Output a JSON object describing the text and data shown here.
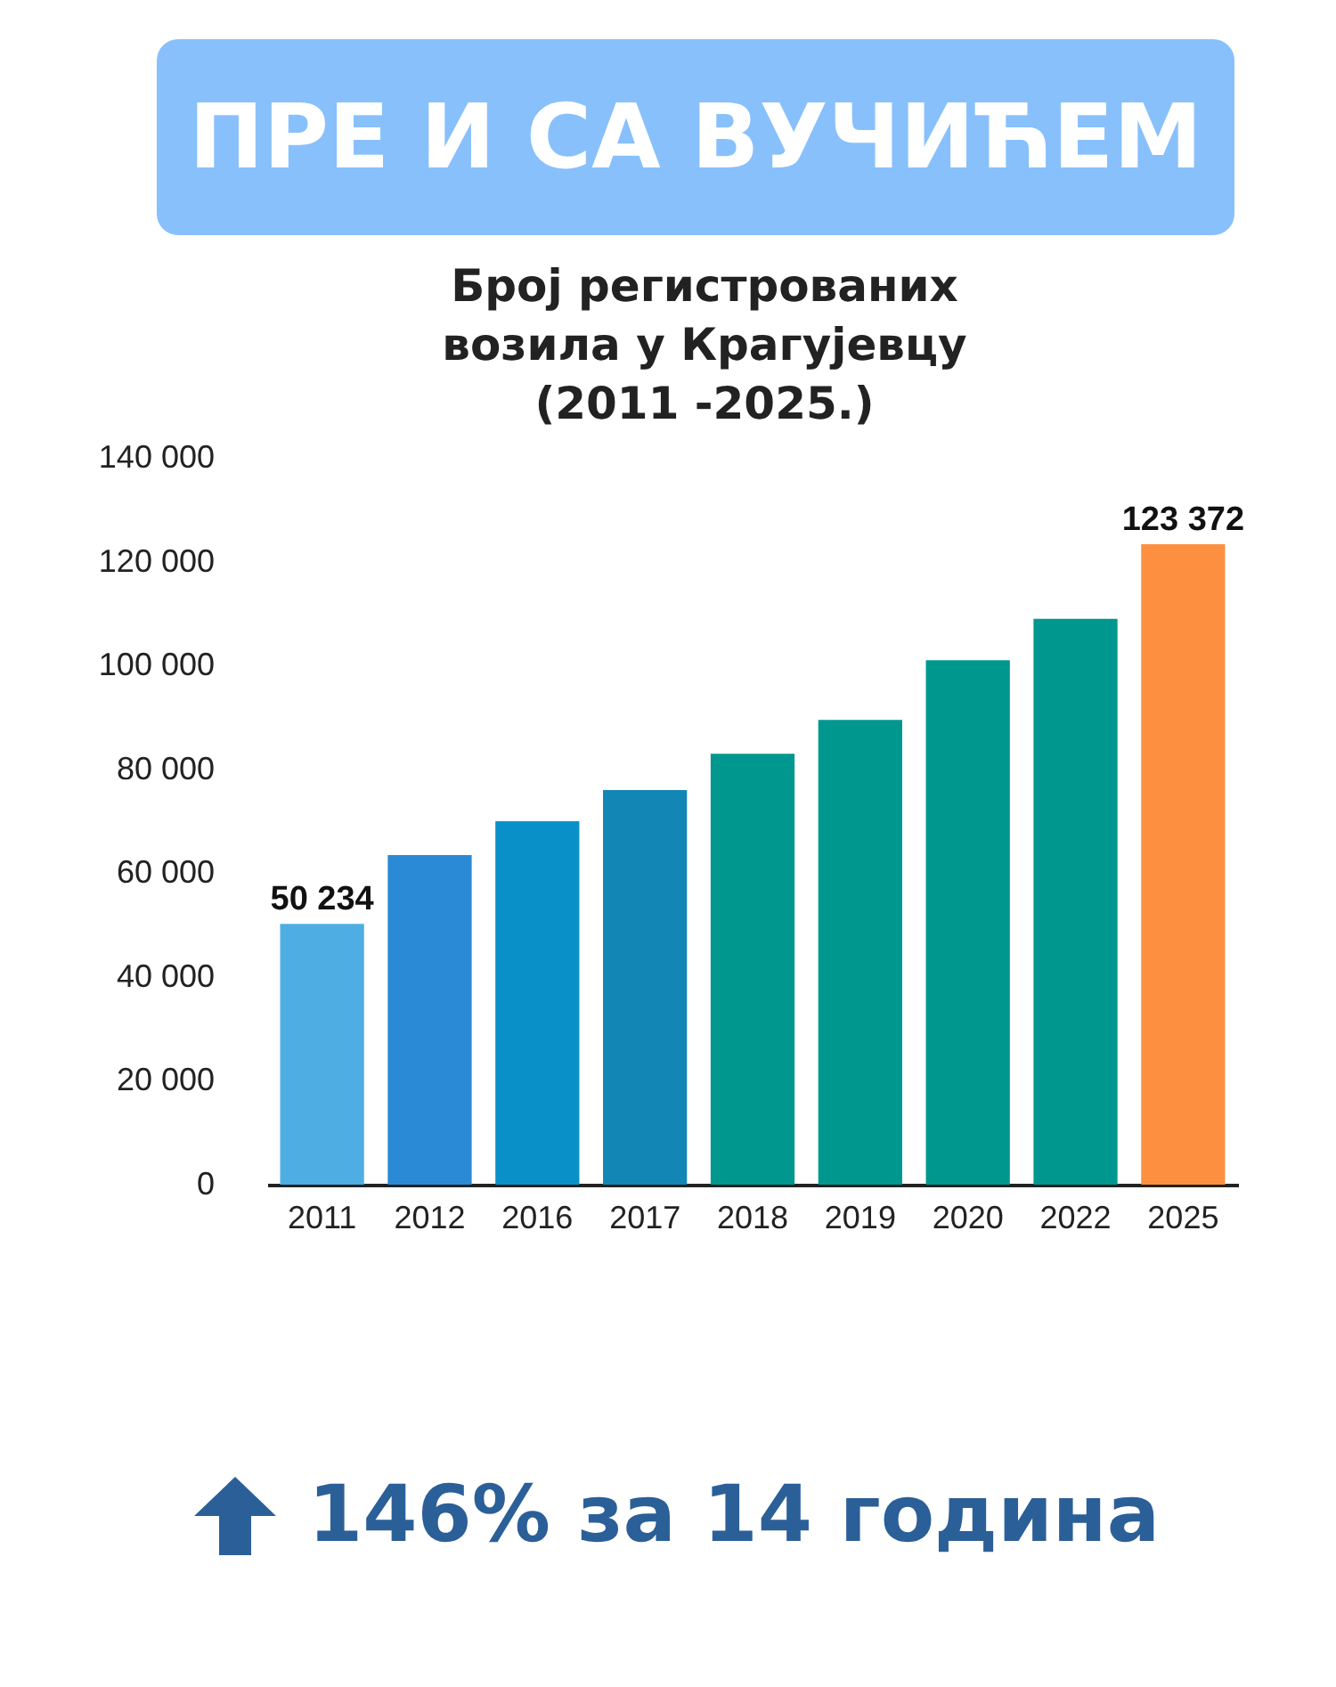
{
  "chart_data": {
    "type": "bar",
    "title": "ПРЕ И СА ВУЧИЋЕМ",
    "subtitle": "Број регистрованих\nвозила у Крагујевцу\n(2011 -2025.)",
    "categories": [
      "2011",
      "2012",
      "2016",
      "2017",
      "2018",
      "2019",
      "2020",
      "2022",
      "2025"
    ],
    "values": [
      50234,
      63500,
      70000,
      76000,
      83000,
      89500,
      101000,
      109000,
      123372
    ],
    "colors": [
      "#4eaee3",
      "#2b8ad6",
      "#0a90c8",
      "#1286b5",
      "#00978f",
      "#00978f",
      "#00978f",
      "#00978f",
      "#fd9040"
    ],
    "value_labels": [
      "50 234",
      null,
      null,
      null,
      null,
      null,
      null,
      null,
      "123 372"
    ],
    "ylim": [
      0,
      140000
    ],
    "yticks": [
      0,
      20000,
      40000,
      60000,
      80000,
      100000,
      120000,
      140000
    ],
    "annotations": [
      "146% за 14 година"
    ]
  }
}
